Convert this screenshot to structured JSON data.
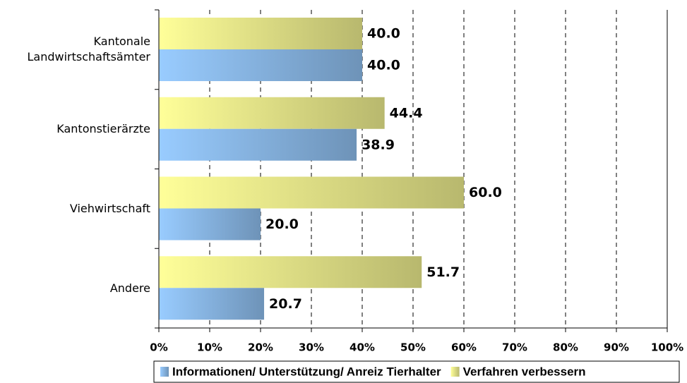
{
  "chart_data": {
    "type": "hbar",
    "categories": [
      "Kantonale Landwirtschaftsämter",
      "Kantonstierärzte",
      "Viehwirtschaft",
      "Andere"
    ],
    "series": [
      {
        "name": "Informationen/ Unterstützung/ Anreiz Tierhalter",
        "color": "#99ccff",
        "values": [
          40,
          38.9,
          20,
          20.7
        ],
        "value_labels": [
          "40.0",
          "38.9",
          "20.0",
          "20.7"
        ]
      },
      {
        "name": "Verfahren verbessern",
        "color": "#ffff99",
        "values": [
          40,
          44.4,
          60,
          51.7
        ],
        "value_labels": [
          "40.0",
          "44.4",
          "60.0",
          "51.7"
        ]
      }
    ],
    "xlim": [
      0,
      100
    ],
    "xticks": [
      {
        "value": 0,
        "label": "0%"
      },
      {
        "value": 10,
        "label": "10%"
      },
      {
        "value": 20,
        "label": "20%"
      },
      {
        "value": 30,
        "label": "30%"
      },
      {
        "value": 40,
        "label": "40%"
      },
      {
        "value": 50,
        "label": "50%"
      },
      {
        "value": 60,
        "label": "60%"
      },
      {
        "value": 70,
        "label": "70%"
      },
      {
        "value": 80,
        "label": "80%"
      },
      {
        "value": 90,
        "label": "90%"
      },
      {
        "value": 100,
        "label": "100%"
      }
    ],
    "grid": true,
    "legend": "bottom"
  }
}
